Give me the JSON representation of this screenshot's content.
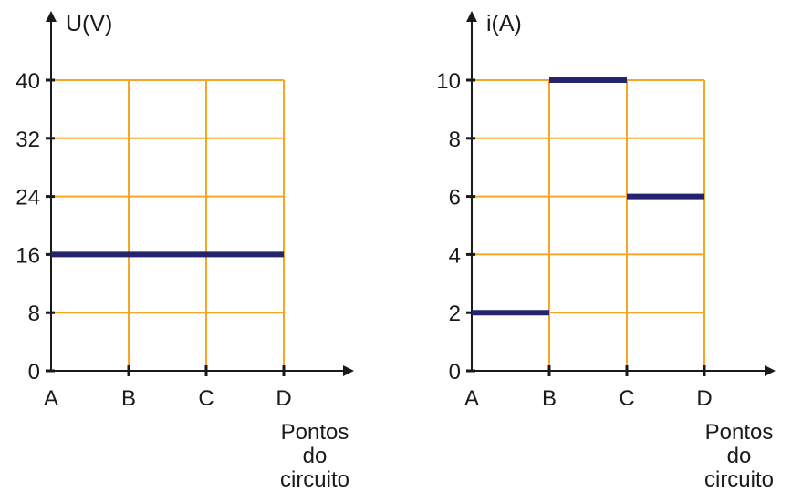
{
  "chart_data": [
    {
      "type": "line",
      "ylabel": "U(V)",
      "xlabel": [
        "Pontos",
        "do",
        "circuito"
      ],
      "categories": [
        "A",
        "B",
        "C",
        "D"
      ],
      "y_ticks": [
        "0",
        "8",
        "16",
        "24",
        "32",
        "40"
      ],
      "ylim": [
        0,
        40
      ],
      "grid": true,
      "colors": {
        "grid": "#f5a623",
        "series": "#23236e",
        "axis": "#1a1a1a"
      },
      "segments": [
        {
          "from": "A",
          "to": "D",
          "value": 16
        }
      ]
    },
    {
      "type": "line",
      "ylabel": "i(A)",
      "xlabel": [
        "Pontos",
        "do",
        "circuito"
      ],
      "categories": [
        "A",
        "B",
        "C",
        "D"
      ],
      "y_ticks": [
        "0",
        "2",
        "4",
        "6",
        "8",
        "10"
      ],
      "ylim": [
        0,
        10
      ],
      "grid": true,
      "colors": {
        "grid": "#f5a623",
        "series": "#23236e",
        "axis": "#1a1a1a"
      },
      "segments": [
        {
          "from": "A",
          "to": "B",
          "value": 2
        },
        {
          "from": "B",
          "to": "C",
          "value": 10
        },
        {
          "from": "C",
          "to": "D",
          "value": 6
        }
      ]
    }
  ]
}
